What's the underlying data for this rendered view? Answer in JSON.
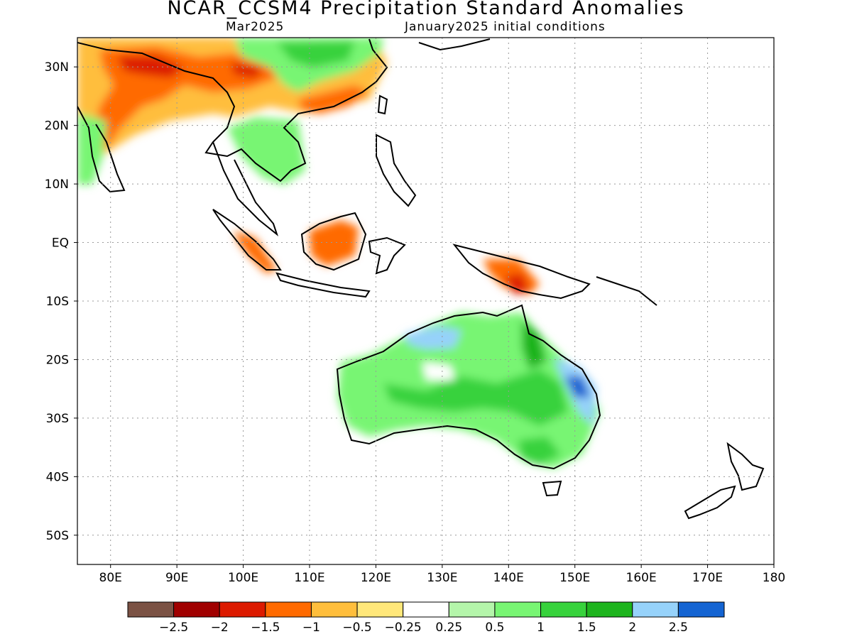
{
  "title": "NCAR_CCSM4 Precipitation Standard Anomalies",
  "subtitle_left": "Mar2025",
  "subtitle_right": "January2025 initial conditions",
  "map": {
    "lon_range": [
      75,
      180
    ],
    "lat_range": [
      -55,
      35
    ],
    "lon_ticks": [
      {
        "value": 80,
        "label": "80E"
      },
      {
        "value": 90,
        "label": "90E"
      },
      {
        "value": 100,
        "label": "100E"
      },
      {
        "value": 110,
        "label": "110E"
      },
      {
        "value": 120,
        "label": "120E"
      },
      {
        "value": 130,
        "label": "130E"
      },
      {
        "value": 140,
        "label": "140E"
      },
      {
        "value": 150,
        "label": "150E"
      },
      {
        "value": 160,
        "label": "160E"
      },
      {
        "value": 170,
        "label": "170E"
      },
      {
        "value": 180,
        "label": "180"
      }
    ],
    "lat_ticks": [
      {
        "value": 30,
        "label": "30N"
      },
      {
        "value": 20,
        "label": "20N"
      },
      {
        "value": 10,
        "label": "10N"
      },
      {
        "value": 0,
        "label": "EQ"
      },
      {
        "value": -10,
        "label": "10S"
      },
      {
        "value": -20,
        "label": "20S"
      },
      {
        "value": -30,
        "label": "30S"
      },
      {
        "value": -40,
        "label": "40S"
      },
      {
        "value": -50,
        "label": "50S"
      }
    ],
    "grid": true
  },
  "colorbar": {
    "colors": [
      "#7b5244",
      "#a00000",
      "#dc1a00",
      "#ff6a00",
      "#ffbe3c",
      "#ffe77a",
      "#ffffff",
      "#b4f5aa",
      "#78f573",
      "#37d23c",
      "#1eb41e",
      "#96d2fa",
      "#1464d2"
    ],
    "labels": [
      "−2.5",
      "−2",
      "−1.5",
      "−1",
      "−0.5",
      "−0.25",
      "0.25",
      "0.5",
      "1",
      "1.5",
      "2",
      "2.5"
    ]
  },
  "regions": [
    {
      "name": "India-Tibet dry",
      "color": "#ffbe3c",
      "lon": 75,
      "lat": 35,
      "w": 38,
      "h": 15
    },
    {
      "name": "Tibet strong dry",
      "color": "#ff6a00",
      "lon": 83,
      "lat": 34,
      "w": 24,
      "h": 7
    },
    {
      "name": "Tibet core",
      "color": "#dc1a00",
      "lon": 85,
      "lat": 32,
      "w": 10,
      "h": 3
    },
    {
      "name": "China wet",
      "color": "#78f573",
      "lon": 104,
      "lat": 35,
      "w": 17,
      "h": 11
    },
    {
      "name": "Borneo dry",
      "color": "#ff6a00",
      "lon": 110,
      "lat": 1,
      "w": 7,
      "h": 4
    },
    {
      "name": "Sumatra dry",
      "color": "#ff6a00",
      "lon": 100,
      "lat": -1,
      "w": 5,
      "h": 4
    },
    {
      "name": "New Guinea dry",
      "color": "#ff6a00",
      "lon": 136,
      "lat": -3,
      "w": 7,
      "h": 6
    },
    {
      "name": "Australia wet",
      "color": "#78f573",
      "lon": 115,
      "lat": -17,
      "w": 38,
      "h": 17
    },
    {
      "name": "Australia strong wet",
      "color": "#37d23c",
      "lon": 126,
      "lat": -21,
      "w": 22,
      "h": 11
    },
    {
      "name": "NW Australia very wet",
      "color": "#96d2fa",
      "lon": 127,
      "lat": -15,
      "w": 5,
      "h": 3
    },
    {
      "name": "E Australia very wet",
      "color": "#1464d2",
      "lon": 149,
      "lat": -24,
      "w": 3,
      "h": 3
    }
  ]
}
